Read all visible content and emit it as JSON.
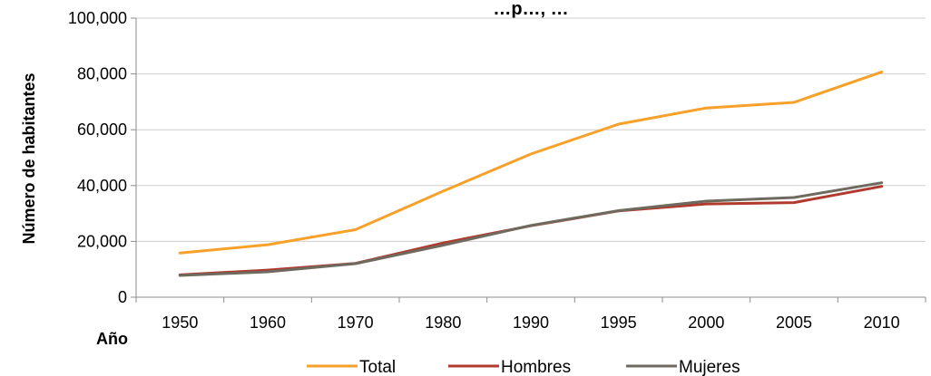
{
  "chart_data": {
    "type": "line",
    "title": "…p…, …",
    "xlabel": "Año",
    "ylabel": "Número de habitantes",
    "categories": [
      "1950",
      "1960",
      "1970",
      "1980",
      "1990",
      "1995",
      "2000",
      "2005",
      "2010"
    ],
    "y_ticks": [
      "0",
      "20,000",
      "40,000",
      "60,000",
      "80,000",
      "100,000"
    ],
    "ylim": [
      0,
      100000
    ],
    "grid": "horizontal",
    "legend_position": "bottom",
    "series": [
      {
        "name": "Total",
        "color": "#f7a12b",
        "values": [
          15800,
          18800,
          24200,
          38000,
          51300,
          62000,
          67800,
          69800,
          80700
        ]
      },
      {
        "name": "Hombres",
        "color": "#b03a2e",
        "values": [
          8000,
          9700,
          12100,
          19400,
          25600,
          30900,
          33400,
          33900,
          39700
        ]
      },
      {
        "name": "Mujeres",
        "color": "#6f6a5f",
        "values": [
          7800,
          9100,
          12000,
          18600,
          25700,
          31000,
          34400,
          35700,
          41000
        ]
      }
    ]
  }
}
